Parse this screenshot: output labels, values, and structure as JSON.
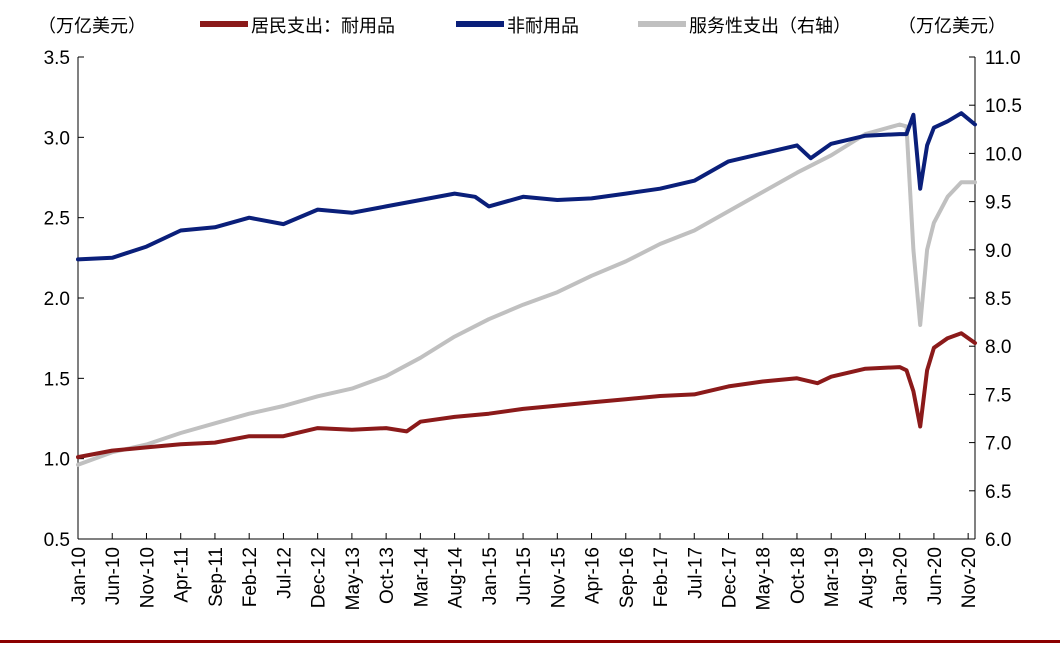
{
  "chart_data": {
    "type": "line",
    "y_left_unit": "（万亿美元）",
    "y_right_unit": "（万亿美元）",
    "y_left": {
      "min": 0.5,
      "max": 3.5,
      "ticks": [
        "0.5",
        "1.0",
        "1.5",
        "2.0",
        "2.5",
        "3.0",
        "3.5"
      ]
    },
    "y_right": {
      "min": 6.0,
      "max": 11.0,
      "ticks": [
        "6.0",
        "6.5",
        "7.0",
        "7.5",
        "8.0",
        "8.5",
        "9.0",
        "9.5",
        "10.0",
        "10.5",
        "11.0"
      ]
    },
    "x_start": "2010-01",
    "x_end": "2020-12",
    "x_tick_labels": [
      "Jan-10",
      "Jun-10",
      "Nov-10",
      "Apr-11",
      "Sep-11",
      "Feb-12",
      "Jul-12",
      "Dec-12",
      "May-13",
      "Oct-13",
      "Mar-14",
      "Aug-14",
      "Jan-15",
      "Jun-15",
      "Nov-15",
      "Apr-16",
      "Sep-16",
      "Feb-17",
      "Jul-17",
      "Dec-17",
      "May-18",
      "Oct-18",
      "Mar-19",
      "Aug-19",
      "Jan-20",
      "Jun-20",
      "Nov-20"
    ],
    "series": [
      {
        "name": "居民支出：耐用品",
        "axis": "left",
        "color": "#8b1a1a",
        "x": [
          "2010-01",
          "2010-06",
          "2010-11",
          "2011-04",
          "2011-09",
          "2012-02",
          "2012-07",
          "2012-12",
          "2013-05",
          "2013-10",
          "2014-01",
          "2014-03",
          "2014-08",
          "2015-01",
          "2015-06",
          "2015-11",
          "2016-04",
          "2016-09",
          "2017-02",
          "2017-07",
          "2017-12",
          "2018-05",
          "2018-10",
          "2019-01",
          "2019-03",
          "2019-08",
          "2020-01",
          "2020-02",
          "2020-03",
          "2020-04",
          "2020-05",
          "2020-06",
          "2020-08",
          "2020-10",
          "2020-12"
        ],
        "values": [
          1.01,
          1.05,
          1.07,
          1.09,
          1.1,
          1.14,
          1.14,
          1.19,
          1.18,
          1.19,
          1.17,
          1.23,
          1.26,
          1.28,
          1.31,
          1.33,
          1.35,
          1.37,
          1.39,
          1.4,
          1.45,
          1.48,
          1.5,
          1.47,
          1.51,
          1.56,
          1.57,
          1.55,
          1.42,
          1.2,
          1.55,
          1.69,
          1.75,
          1.78,
          1.72
        ]
      },
      {
        "name": "非耐用品",
        "axis": "left",
        "color": "#0a1f7a",
        "x": [
          "2010-01",
          "2010-06",
          "2010-11",
          "2011-04",
          "2011-09",
          "2012-02",
          "2012-07",
          "2012-12",
          "2013-05",
          "2013-10",
          "2014-03",
          "2014-08",
          "2014-11",
          "2015-01",
          "2015-06",
          "2015-11",
          "2016-04",
          "2016-09",
          "2017-02",
          "2017-07",
          "2017-12",
          "2018-05",
          "2018-10",
          "2018-12",
          "2019-03",
          "2019-08",
          "2020-01",
          "2020-02",
          "2020-03",
          "2020-04",
          "2020-05",
          "2020-06",
          "2020-08",
          "2020-10",
          "2020-12"
        ],
        "values": [
          2.24,
          2.25,
          2.32,
          2.42,
          2.44,
          2.5,
          2.46,
          2.55,
          2.53,
          2.57,
          2.61,
          2.65,
          2.63,
          2.57,
          2.63,
          2.61,
          2.62,
          2.65,
          2.68,
          2.73,
          2.85,
          2.9,
          2.95,
          2.87,
          2.96,
          3.01,
          3.02,
          3.02,
          3.14,
          2.68,
          2.95,
          3.06,
          3.1,
          3.15,
          3.08
        ]
      },
      {
        "name": "服务性支出（右轴）",
        "axis": "right",
        "color": "#c0c0c0",
        "x": [
          "2010-01",
          "2010-06",
          "2010-11",
          "2011-04",
          "2011-09",
          "2012-02",
          "2012-07",
          "2012-12",
          "2013-05",
          "2013-10",
          "2014-03",
          "2014-08",
          "2015-01",
          "2015-06",
          "2015-11",
          "2016-04",
          "2016-09",
          "2017-02",
          "2017-07",
          "2017-12",
          "2018-05",
          "2018-10",
          "2019-03",
          "2019-08",
          "2020-01",
          "2020-02",
          "2020-03",
          "2020-04",
          "2020-05",
          "2020-06",
          "2020-08",
          "2020-10",
          "2020-12"
        ],
        "values": [
          6.77,
          6.9,
          6.98,
          7.1,
          7.2,
          7.3,
          7.38,
          7.48,
          7.56,
          7.69,
          7.88,
          8.1,
          8.28,
          8.43,
          8.56,
          8.73,
          8.88,
          9.06,
          9.2,
          9.4,
          9.6,
          9.8,
          9.98,
          10.2,
          10.3,
          10.28,
          9.0,
          8.22,
          9.0,
          9.28,
          9.55,
          9.7,
          9.7
        ]
      }
    ]
  }
}
